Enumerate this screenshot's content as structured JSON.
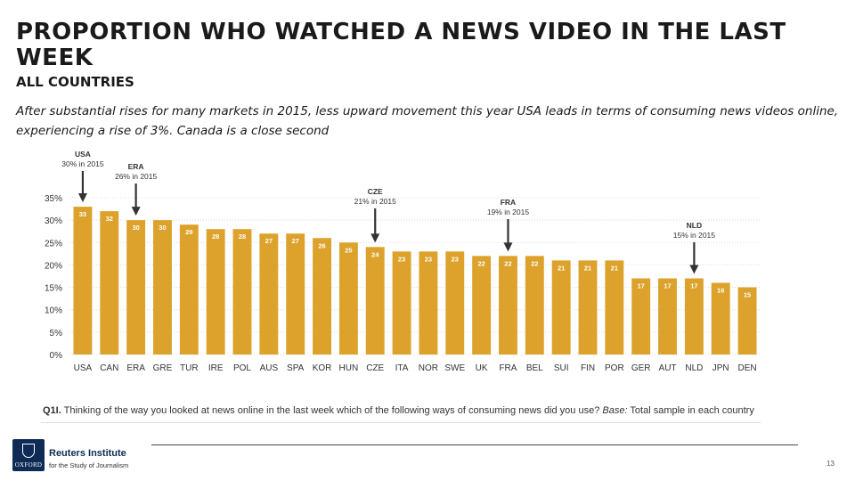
{
  "slide": {
    "title": "PROPORTION WHO WATCHED A NEWS VIDEO IN THE LAST WEEK",
    "subtitle": "ALL COUNTRIES",
    "description": "After substantial rises for many markets in 2015, less upward movement this year USA leads in terms of consuming news videos online, experiencing a rise of 3%. Canada is a close second",
    "footnote": {
      "label": "Q1I.",
      "text": "Thinking of the way you looked at news online in the last week which of the following ways of consuming news did you use?",
      "base_label": "Base:",
      "base_text": "Total sample in each country"
    },
    "institute_name": "Reuters Institute",
    "institute_sub": "for the Study of Journalism",
    "logo_text": "OXFORD",
    "page_number": "13"
  },
  "colors": {
    "bar": "#dca22b",
    "grid": "#d9d9d9",
    "arrow": "#333333",
    "text": "#333333"
  },
  "chart_data": {
    "type": "bar",
    "categories": [
      "USA",
      "CAN",
      "ERA",
      "GRE",
      "TUR",
      "IRE",
      "POL",
      "AUS",
      "SPA",
      "KOR",
      "HUN",
      "CZE",
      "ITA",
      "NOR",
      "SWE",
      "UK",
      "FRA",
      "BEL",
      "SUI",
      "FIN",
      "POR",
      "GER",
      "AUT",
      "NLD",
      "JPN",
      "DEN"
    ],
    "values": [
      33,
      32,
      30,
      30,
      29,
      28,
      28,
      27,
      27,
      26,
      25,
      24,
      23,
      23,
      23,
      22,
      22,
      22,
      21,
      21,
      21,
      17,
      17,
      17,
      16,
      15
    ],
    "y_ticks": [
      "0%",
      "5%",
      "10%",
      "15%",
      "20%",
      "25%",
      "30%",
      "35%"
    ],
    "ylim": [
      0,
      35
    ],
    "grid": true,
    "annotations": [
      {
        "category": "USA",
        "label": "USA",
        "text": "30% in 2015"
      },
      {
        "category": "ERA",
        "label": "ERA",
        "text": "26% in 2015"
      },
      {
        "category": "CZE",
        "label": "CZE",
        "text": "21% in 2015"
      },
      {
        "category": "FRA",
        "label": "FRA",
        "text": "19% in 2015"
      },
      {
        "category": "NLD",
        "label": "NLD",
        "text": "15% in 2015"
      }
    ]
  }
}
